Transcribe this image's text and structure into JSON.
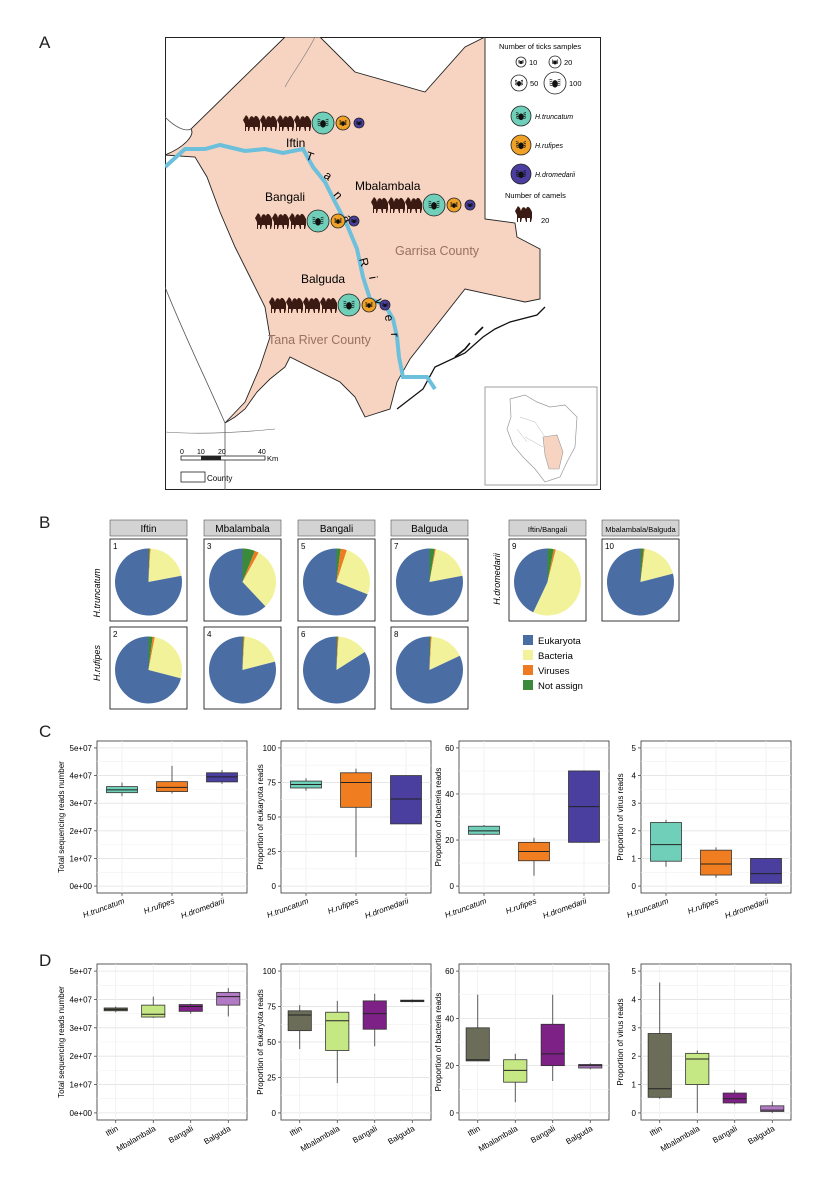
{
  "panels": {
    "a": "A",
    "b": "B",
    "c": "C",
    "d": "D"
  },
  "map": {
    "legend_ticks_title": "Number of ticks samples",
    "legend_ticks_sizes": [
      "10",
      "20",
      "50",
      "100"
    ],
    "species": [
      {
        "label": "H.truncatum",
        "color": "#6fcfb8"
      },
      {
        "label": "H.rufipes",
        "color": "#f0a228"
      },
      {
        "label": "H.dromedarii",
        "color": "#4a3e9e"
      }
    ],
    "legend_camels_title": "Number of camels",
    "legend_camels_value": "20",
    "sites": [
      {
        "name": "Iftin",
        "camels": 4
      },
      {
        "name": "Bangali",
        "camels": 3
      },
      {
        "name": "Mbalambala",
        "camels": 3
      },
      {
        "name": "Balguda",
        "camels": 4
      }
    ],
    "river_label": [
      "T",
      "a",
      "n",
      "a",
      "R",
      "i",
      "v",
      "e",
      "r"
    ],
    "county_garissa": "Garrisa County",
    "county_tana": "Tana River County",
    "scale_ticks": [
      "0",
      "10",
      "20",
      "40"
    ],
    "scale_unit": "Km",
    "county_legend": "County",
    "land_color": "#f6d4c1",
    "river_color": "#6cc0dc"
  },
  "chart_data": [
    {
      "type": "pie",
      "title": "Read classification per tick pool",
      "category_colors": {
        "Eukaryota": "#4a6da3",
        "Bacteria": "#f2f29a",
        "Viruses": "#ee7b22",
        "Not assign": "#3a8a3a"
      },
      "legend": [
        "Eukaryota",
        "Bacteria",
        "Viruses",
        "Not assign"
      ],
      "column_headers": [
        "Iftin",
        "Mbalambala",
        "Bangali",
        "Balguda",
        "Iftin/Bangali",
        "Mbalambala/Balguda"
      ],
      "row_labels": [
        "H.truncatum",
        "H.rufipes",
        "H.dromedarii"
      ],
      "pies": [
        {
          "id": "1",
          "column": "Iftin",
          "row": "H.truncatum",
          "values": {
            "Eukaryota": 78,
            "Bacteria": 21,
            "Viruses": 0.5,
            "Not assign": 0.5
          }
        },
        {
          "id": "3",
          "column": "Mbalambala",
          "row": "H.truncatum",
          "values": {
            "Eukaryota": 62,
            "Bacteria": 30,
            "Viruses": 2,
            "Not assign": 6
          }
        },
        {
          "id": "5",
          "column": "Bangali",
          "row": "H.truncatum",
          "values": {
            "Eukaryota": 69,
            "Bacteria": 26,
            "Viruses": 3,
            "Not assign": 2
          }
        },
        {
          "id": "7",
          "column": "Balguda",
          "row": "H.truncatum",
          "values": {
            "Eukaryota": 78,
            "Bacteria": 19,
            "Viruses": 0.5,
            "Not assign": 2.5
          }
        },
        {
          "id": "2",
          "column": "Iftin",
          "row": "H.rufipes",
          "values": {
            "Eukaryota": 71,
            "Bacteria": 26,
            "Viruses": 1,
            "Not assign": 2
          }
        },
        {
          "id": "4",
          "column": "Mbalambala",
          "row": "H.rufipes",
          "values": {
            "Eukaryota": 79,
            "Bacteria": 20,
            "Viruses": 0.5,
            "Not assign": 0.5
          }
        },
        {
          "id": "6",
          "column": "Bangali",
          "row": "H.rufipes",
          "values": {
            "Eukaryota": 84,
            "Bacteria": 15,
            "Viruses": 0.5,
            "Not assign": 0.5
          }
        },
        {
          "id": "8",
          "column": "Balguda",
          "row": "H.rufipes",
          "values": {
            "Eukaryota": 82,
            "Bacteria": 17,
            "Viruses": 0.5,
            "Not assign": 0.5
          }
        },
        {
          "id": "9",
          "column": "Iftin/Bangali",
          "row": "H.dromedarii",
          "values": {
            "Eukaryota": 43,
            "Bacteria": 53,
            "Viruses": 1,
            "Not assign": 3
          }
        },
        {
          "id": "10",
          "column": "Mbalambala/Balguda",
          "row": "H.dromedarii",
          "values": {
            "Eukaryota": 79,
            "Bacteria": 19,
            "Viruses": 0.5,
            "Not assign": 1.5
          }
        }
      ]
    },
    {
      "type": "box",
      "panel": "C",
      "categories": [
        "H.truncatum",
        "H.rufipes",
        "H.dromedarii"
      ],
      "colors": [
        "#6fcfb8",
        "#f07d1f",
        "#4a3e9e"
      ],
      "subplots": [
        {
          "ylabel": "Total sequencing reads number",
          "ylim": [
            0,
            50000000
          ],
          "ticks": [
            "0e+00",
            "1e+07",
            "2e+07",
            "3e+07",
            "4e+07",
            "5e+07"
          ],
          "tick_values": [
            0,
            10000000,
            20000000,
            30000000,
            40000000,
            50000000
          ],
          "boxes": [
            {
              "min": 32500000,
              "q1": 33800000,
              "median": 34800000,
              "q3": 36000000,
              "max": 37500000
            },
            {
              "min": 33500000,
              "q1": 34200000,
              "median": 35700000,
              "q3": 37800000,
              "max": 43500000
            },
            {
              "min": 37000000,
              "q1": 37700000,
              "median": 39500000,
              "q3": 41000000,
              "max": 42000000
            }
          ]
        },
        {
          "ylabel": "Proportion of eukaryota reads",
          "ylim": [
            0,
            100
          ],
          "ticks": [
            "0",
            "25",
            "50",
            "75",
            "100"
          ],
          "tick_values": [
            0,
            25,
            50,
            75,
            100
          ],
          "boxes": [
            {
              "min": 69,
              "q1": 71,
              "median": 73.5,
              "q3": 76,
              "max": 78
            },
            {
              "min": 21,
              "q1": 57,
              "median": 75,
              "q3": 82,
              "max": 85
            },
            {
              "min": 45,
              "q1": 45,
              "median": 63,
              "q3": 80,
              "max": 80
            }
          ]
        },
        {
          "ylabel": "Proportion of bacteria reads",
          "ylim": [
            0,
            60
          ],
          "ticks": [
            "0",
            "20",
            "40",
            "60"
          ],
          "tick_values": [
            0,
            20,
            40,
            60
          ],
          "boxes": [
            {
              "min": 22,
              "q1": 22.5,
              "median": 24,
              "q3": 26,
              "max": 26.5
            },
            {
              "min": 4.5,
              "q1": 11,
              "median": 15,
              "q3": 19,
              "max": 21
            },
            {
              "min": 19,
              "q1": 19,
              "median": 34.5,
              "q3": 50,
              "max": 50
            }
          ]
        },
        {
          "ylabel": "Proportion of virus reads",
          "ylim": [
            0,
            5
          ],
          "ticks": [
            "0",
            "1",
            "2",
            "3",
            "4",
            "5"
          ],
          "tick_values": [
            0,
            1,
            2,
            3,
            4,
            5
          ],
          "boxes": [
            {
              "min": 0.7,
              "q1": 0.9,
              "median": 1.5,
              "q3": 2.3,
              "max": 2.4
            },
            {
              "min": 0.3,
              "q1": 0.4,
              "median": 0.8,
              "q3": 1.3,
              "max": 1.4
            },
            {
              "min": 0.1,
              "q1": 0.1,
              "median": 0.45,
              "q3": 1.0,
              "max": 1.0
            }
          ]
        }
      ]
    },
    {
      "type": "box",
      "panel": "D",
      "categories": [
        "Iftin",
        "Mbalambala",
        "Bangali",
        "Balguda"
      ],
      "colors": [
        "#6b6d58",
        "#c6e884",
        "#7e2186",
        "#b27ac4"
      ],
      "subplots": [
        {
          "ylabel": "Total sequencing reads number",
          "ylim": [
            0,
            50000000
          ],
          "ticks": [
            "0e+00",
            "1e+07",
            "2e+07",
            "3e+07",
            "4e+07",
            "5e+07"
          ],
          "tick_values": [
            0,
            10000000,
            20000000,
            30000000,
            40000000,
            50000000
          ],
          "boxes": [
            {
              "min": 35500000,
              "q1": 36000000,
              "median": 36500000,
              "q3": 37000000,
              "max": 37500000
            },
            {
              "min": 33500000,
              "q1": 33800000,
              "median": 34800000,
              "q3": 38000000,
              "max": 41000000
            },
            {
              "min": 35000000,
              "q1": 35800000,
              "median": 37500000,
              "q3": 38200000,
              "max": 38500000
            },
            {
              "min": 34000000,
              "q1": 38000000,
              "median": 41000000,
              "q3": 42500000,
              "max": 44000000
            }
          ]
        },
        {
          "ylabel": "Proportion of eukaryota reads",
          "ylim": [
            0,
            100
          ],
          "ticks": [
            "0",
            "25",
            "50",
            "75",
            "100"
          ],
          "tick_values": [
            0,
            25,
            50,
            75,
            100
          ],
          "boxes": [
            {
              "min": 45,
              "q1": 58,
              "median": 69,
              "q3": 72,
              "max": 76
            },
            {
              "min": 21,
              "q1": 44,
              "median": 65,
              "q3": 71,
              "max": 79
            },
            {
              "min": 47,
              "q1": 59,
              "median": 70,
              "q3": 79,
              "max": 84
            },
            {
              "min": 78,
              "q1": 78.5,
              "median": 79,
              "q3": 79.5,
              "max": 80
            }
          ]
        },
        {
          "ylabel": "Proportion of bacteria reads",
          "ylim": [
            0,
            60
          ],
          "ticks": [
            "0",
            "20",
            "40",
            "60"
          ],
          "tick_values": [
            0,
            20,
            40,
            60
          ],
          "boxes": [
            {
              "min": 22,
              "q1": 22,
              "median": 22.5,
              "q3": 36,
              "max": 50
            },
            {
              "min": 4.5,
              "q1": 13,
              "median": 18,
              "q3": 22.5,
              "max": 25
            },
            {
              "min": 13.5,
              "q1": 20,
              "median": 25,
              "q3": 37.5,
              "max": 50
            },
            {
              "min": 18.5,
              "q1": 19,
              "median": 20,
              "q3": 20.5,
              "max": 21
            }
          ]
        },
        {
          "ylabel": "Proportion of virus reads",
          "ylim": [
            0,
            5
          ],
          "ticks": [
            "0",
            "1",
            "2",
            "3",
            "4",
            "5"
          ],
          "tick_values": [
            0,
            1,
            2,
            3,
            4,
            5
          ],
          "boxes": [
            {
              "min": 0.5,
              "q1": 0.55,
              "median": 0.85,
              "q3": 2.8,
              "max": 4.6
            },
            {
              "min": 0.0,
              "q1": 1.0,
              "median": 1.9,
              "q3": 2.1,
              "max": 2.2
            },
            {
              "min": 0.3,
              "q1": 0.35,
              "median": 0.5,
              "q3": 0.7,
              "max": 0.8
            },
            {
              "min": 0.0,
              "q1": 0.05,
              "median": 0.1,
              "q3": 0.25,
              "max": 0.4
            }
          ]
        }
      ]
    }
  ]
}
